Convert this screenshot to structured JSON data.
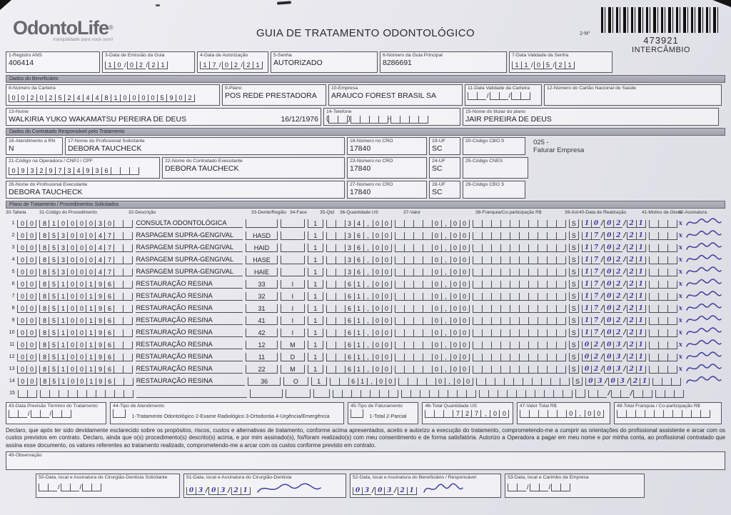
{
  "logo": {
    "text": "OdontoLife",
    "reg": "®",
    "tagline": "tranquilidade para você sorrir"
  },
  "header": {
    "title": "GUIA DE TRATAMENTO ODONTOLÓGICO",
    "numero_label": "2-Nº",
    "numero": "473921",
    "tipo": "INTERCÂMBIO"
  },
  "campos_topo": {
    "registro_ans": {
      "label": "1-Registro ANS",
      "value": "406414"
    },
    "data_emissao": {
      "label": "3-Data de Emissão da Guia",
      "value": "10/02/21"
    },
    "data_autorizacao": {
      "label": "4-Data de Autorização",
      "value": "17/02/21"
    },
    "senha": {
      "label": "5-Senha",
      "value": "AUTORIZADO"
    },
    "guia_principal": {
      "label": "6-Número da Guia Principal",
      "value": "8286691"
    },
    "validade_senha": {
      "label": "7-Data Validade da Senha",
      "value": "11/05/21"
    }
  },
  "beneficiario": {
    "section_title": "Dados do Beneficiário",
    "numero_carteira": {
      "label": "8-Número da Carteira",
      "value": "00202524448100005902"
    },
    "plano": {
      "label": "9-Plano",
      "value": "POS REDE PRESTADORA"
    },
    "empresa": {
      "label": "10-Empresa",
      "value": "ARAUCO FOREST BRASIL SA"
    },
    "validade_carteira": {
      "label": "11-Data Validade da Carteira",
      "value": ""
    },
    "cartao_nacional": {
      "label": "12-Número do Cartão Nacional de Saúde",
      "value": ""
    },
    "nome": {
      "label": "13-Nome",
      "value": "WALKIRIA YUKO WAKAMATSU PEREIRA DE DEUS",
      "nascimento": "16/12/1976"
    },
    "telefone": {
      "label": "14-Telefone",
      "value": ""
    },
    "titular": {
      "label": "15-Nome do titular do plano",
      "value": "JAIR PEREIRA DE DEUS"
    }
  },
  "contratado": {
    "section_title": "Dados do Contratado Responsável pelo Tratamento",
    "atendimento_rn": {
      "label": "16-Atendimento a RN",
      "value": "N"
    },
    "prof_solicitante": {
      "label": "17-Nome do Profissional Solicitante",
      "value": "DEBORA TAUCHECK"
    },
    "cro_solicitante": {
      "label": "18-Número no CRO",
      "value": "17840"
    },
    "uf_solicitante": {
      "label": "19-UF",
      "value": "SC"
    },
    "cbo_solicitante": {
      "label": "20-Código CBO S",
      "value": ""
    },
    "nota_linha1": "025 -",
    "nota_linha2": "Faturar Empresa",
    "codigo_operadora": {
      "label": "21-Código na Operadora / CNPJ / CPF",
      "value": "09329734936"
    },
    "contratado_executante": {
      "label": "22-Nome do Contratado Executante",
      "value": "DEBORA TAUCHECK"
    },
    "cro_executante": {
      "label": "23-Número no CRO",
      "value": "17840"
    },
    "uf_executante": {
      "label": "24-UF",
      "value": "SC"
    },
    "cnes": {
      "label": "25-Código CNES",
      "value": ""
    },
    "prof_executante": {
      "label": "26-Nome do Profissional Executante",
      "value": "DEBORA TAUCHECK"
    },
    "cro_prof_executante": {
      "label": "27-Número no CRO",
      "value": "17840"
    },
    "uf_prof_executante": {
      "label": "28-UF",
      "value": "SC"
    },
    "cbo_executante": {
      "label": "29-Código CBO S",
      "value": ""
    }
  },
  "procedimentos": {
    "section_title": "Plano de Tratamento / Procedimentos Solicitados",
    "headers": [
      "30-Tabela",
      "31-Código do Procedimento",
      "32-Descrição",
      "33-Dente/Região",
      "34-Face",
      "35-Qtd",
      "36-Quantidade US",
      "37-Valor",
      "38-Franquia/Co-participação R$",
      "39-Aut",
      "40-Data de Realização",
      "41-Motivo da Glosa",
      "42-Assinatura"
    ],
    "rows": [
      {
        "n": "1",
        "tab": "00",
        "cod": "81000030",
        "desc": "CONSULTA ODONTOLÓGICA",
        "dente": "",
        "face": "",
        "qtd": "1",
        "us": "34,00",
        "valor": "0,00",
        "franquia": "",
        "aut": "S",
        "data": "10/02/21",
        "glosa": "x",
        "assinado": true
      },
      {
        "n": "2",
        "tab": "00",
        "cod": "85300047",
        "desc": "RASPAGEM SUPRA-GENGIVAL",
        "dente": "HASD",
        "face": "",
        "qtd": "1",
        "us": "36,00",
        "valor": "0,00",
        "franquia": "",
        "aut": "S",
        "data": "17/02/21",
        "glosa": "x",
        "assinado": true
      },
      {
        "n": "3",
        "tab": "00",
        "cod": "85300047",
        "desc": "RASPAGEM SUPRA-GENGIVAL",
        "dente": "HAID",
        "face": "",
        "qtd": "1",
        "us": "36,00",
        "valor": "0,00",
        "franquia": "",
        "aut": "S",
        "data": "17/02/21",
        "glosa": "x",
        "assinado": true
      },
      {
        "n": "4",
        "tab": "00",
        "cod": "85300047",
        "desc": "RASPAGEM SUPRA-GENGIVAL",
        "dente": "HASE",
        "face": "",
        "qtd": "1",
        "us": "36,00",
        "valor": "0,00",
        "franquia": "",
        "aut": "S",
        "data": "17/02/21",
        "glosa": "x",
        "assinado": true
      },
      {
        "n": "5",
        "tab": "00",
        "cod": "85300047",
        "desc": "RASPAGEM SUPRA-GENGIVAL",
        "dente": "HAIE",
        "face": "",
        "qtd": "1",
        "us": "36,00",
        "valor": "0,00",
        "franquia": "",
        "aut": "S",
        "data": "17/02/21",
        "glosa": "x",
        "assinado": true
      },
      {
        "n": "6",
        "tab": "00",
        "cod": "85100196",
        "desc": "RESTAURAÇÃO RESINA",
        "dente": "33",
        "face": "I",
        "qtd": "1",
        "us": "61,00",
        "valor": "0,00",
        "franquia": "",
        "aut": "S",
        "data": "17/02/21",
        "glosa": "x",
        "assinado": true
      },
      {
        "n": "7",
        "tab": "00",
        "cod": "85100196",
        "desc": "RESTAURAÇÃO RESINA",
        "dente": "32",
        "face": "I",
        "qtd": "1",
        "us": "61,00",
        "valor": "0,00",
        "franquia": "",
        "aut": "S",
        "data": "17/02/21",
        "glosa": "x",
        "assinado": true
      },
      {
        "n": "8",
        "tab": "00",
        "cod": "85100196",
        "desc": "RESTAURAÇÃO RESINA",
        "dente": "31",
        "face": "I",
        "qtd": "1",
        "us": "61,00",
        "valor": "0,00",
        "franquia": "",
        "aut": "S",
        "data": "17/02/21",
        "glosa": "x",
        "assinado": true
      },
      {
        "n": "9",
        "tab": "00",
        "cod": "85100196",
        "desc": "RESTAURAÇÃO RESINA",
        "dente": "41",
        "face": "I",
        "qtd": "1",
        "us": "61,00",
        "valor": "0,00",
        "franquia": "",
        "aut": "S",
        "data": "17/02/21",
        "glosa": "x",
        "assinado": true
      },
      {
        "n": "10",
        "tab": "00",
        "cod": "85100196",
        "desc": "RESTAURAÇÃO RESINA",
        "dente": "42",
        "face": "I",
        "qtd": "1",
        "us": "61,00",
        "valor": "0,00",
        "franquia": "",
        "aut": "S",
        "data": "17/02/21",
        "glosa": "x",
        "assinado": true
      },
      {
        "n": "11",
        "tab": "00",
        "cod": "85100196",
        "desc": "RESTAURAÇÃO RESINA",
        "dente": "12",
        "face": "M",
        "qtd": "1",
        "us": "61,00",
        "valor": "0,00",
        "franquia": "",
        "aut": "S",
        "data": "02/03/21",
        "glosa": "x",
        "assinado": true
      },
      {
        "n": "12",
        "tab": "00",
        "cod": "85100196",
        "desc": "RESTAURAÇÃO RESINA",
        "dente": "11",
        "face": "D",
        "qtd": "1",
        "us": "61,00",
        "valor": "0,00",
        "franquia": "",
        "aut": "S",
        "data": "02/03/21",
        "glosa": "x",
        "assinado": true
      },
      {
        "n": "13",
        "tab": "00",
        "cod": "85100196",
        "desc": "RESTAURAÇÃO RESINA",
        "dente": "22",
        "face": "M",
        "qtd": "1",
        "us": "61,00",
        "valor": "0,00",
        "franquia": "",
        "aut": "S",
        "data": "02/03/21",
        "glosa": "x",
        "assinado": true
      },
      {
        "n": "14",
        "tab": "00",
        "cod": "85100196",
        "desc": "RESTAURAÇÃO RESINA",
        "dente": "36",
        "face": "O",
        "qtd": "1",
        "us": "61,00",
        "valor": "0,00",
        "franquia": "",
        "aut": "S",
        "data": "03/03/21",
        "glosa": "",
        "assinado": true
      },
      {
        "n": "15",
        "tab": "",
        "cod": "",
        "desc": "",
        "dente": "",
        "face": "",
        "qtd": "",
        "us": "",
        "valor": "",
        "franquia": "",
        "aut": "",
        "data": "",
        "glosa": "",
        "assinado": false
      }
    ]
  },
  "totais": {
    "previsao_termino": {
      "label": "43-Data Previsão Término do Tratamento",
      "value": ""
    },
    "tipo_atendimento": {
      "label": "44-Tipo de Atendimento",
      "opcoes": "1-Tratamento Odontológico  2-Exame Radiológico  3-Ortodontia  4-Urgência/Emergência",
      "value": ""
    },
    "tipo_faturamento": {
      "label": "45-Tipo de Faturamento",
      "opcoes": "1-Total  2-Parcial",
      "value": ""
    },
    "total_us": {
      "label": "46-Total Quantidade US",
      "value": "727,00"
    },
    "valor_total": {
      "label": "47-Valor Total R$",
      "value": "0,00"
    },
    "total_franquia": {
      "label": "48-Total Franquia / Co-participação R$",
      "value": ""
    }
  },
  "declaracao": "Declaro, que após ter sido devidamente esclarecido sobre os propósitos, riscos, custos e alternativas de tratamento, conforme acima apresentados, aceito e autorizo a execução do tratamento, comprometendo-me a cumprir as orientações do profissional assistente e arcar com os custos previstos em contrato. Declaro, ainda que o(s) procedimento(s) descrito(s) acima, e por mim assinado(s), foi/foram realizado(s) com meu consentimento e de forma satisfatória. Autorizo a Operadora a pagar em meu nome e por minha conta, ao profissional contratado que assina esse documento, os valores referentes ao tratamento realizado, comprometendo-me a arcar com os custos conforme previsto em contrato.",
  "observacao": {
    "label": "49-Observação"
  },
  "assinaturas": {
    "s50": {
      "label": "50-Data, local e Assinatura do Cirurgião-Dentista Solicitante",
      "data": ""
    },
    "s51": {
      "label": "51-Data, local e Assinatura do Cirurgião-Dentista",
      "data": "03/03/21"
    },
    "s52": {
      "label": "52-Data, local e Assinatura do Beneficiário / Responsável",
      "data": "03/03/21"
    },
    "s53": {
      "label": "53-Data, local e Carimbo da Empresa",
      "data": ""
    }
  }
}
